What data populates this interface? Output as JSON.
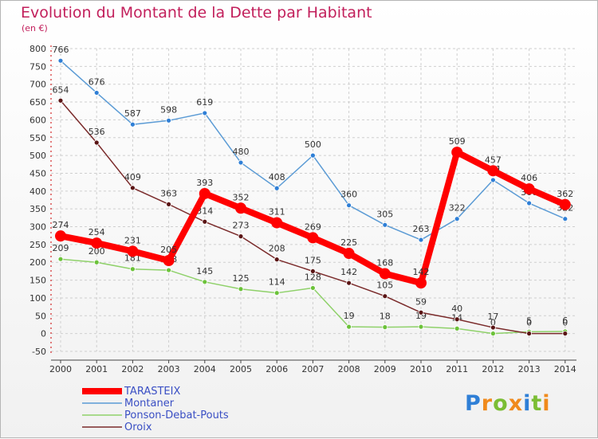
{
  "title": "Evolution du Montant de la Dette par Habitant",
  "unit": "(en €)",
  "logo_text": "Proxiti",
  "chart_data": {
    "type": "line",
    "title": "Evolution du Montant de la Dette par Habitant",
    "ylabel": "(en €)",
    "ylim": [
      -50,
      800
    ],
    "yticks": [
      -50,
      0,
      50,
      100,
      150,
      200,
      250,
      300,
      350,
      400,
      450,
      500,
      550,
      600,
      650,
      700,
      750,
      800
    ],
    "categories": [
      "2000",
      "2001",
      "2002",
      "2003",
      "2004",
      "2005",
      "2006",
      "2007",
      "2008",
      "2009",
      "2010",
      "2011",
      "2012",
      "2013",
      "2014"
    ],
    "grid": true,
    "legend_position": "bottom-left",
    "series": [
      {
        "name": "Montaner",
        "color": "#5b9bd5",
        "marker_color": "#2f7fd6",
        "values": [
          766,
          676,
          587,
          598,
          619,
          480,
          408,
          500,
          360,
          305,
          263,
          322,
          431,
          366,
          322
        ]
      },
      {
        "name": "Ponson-Debat-Pouts",
        "color": "#8fd16a",
        "marker_color": "#6cc23a",
        "values": [
          209,
          200,
          181,
          178,
          145,
          125,
          114,
          128,
          19,
          18,
          19,
          14,
          0,
          5,
          6
        ]
      },
      {
        "name": "Oroix",
        "color": "#7a2a2a",
        "marker_color": "#5a1515",
        "values": [
          654,
          536,
          409,
          363,
          314,
          273,
          208,
          175,
          142,
          105,
          59,
          40,
          17,
          0,
          0
        ]
      },
      {
        "name": "TARASTEIX",
        "color": "#ff0000",
        "marker_color": "#ff0000",
        "values": [
          274,
          254,
          231,
          205,
          393,
          352,
          311,
          269,
          225,
          168,
          142,
          509,
          457,
          406,
          362
        ]
      }
    ],
    "data_labels": [
      {
        "series": "Montaner",
        "labels": [
          "766",
          "676",
          "587",
          "598",
          "619",
          "480",
          "408",
          "500",
          "360",
          "305",
          "263",
          "322",
          "431",
          "366",
          "322"
        ]
      },
      {
        "series": "Ponson-Debat-Pouts",
        "labels": [
          "209",
          "200",
          "181",
          "178",
          "145",
          "125",
          "114",
          "128",
          "19",
          "18",
          "19",
          "14",
          "0",
          "5",
          "6"
        ]
      },
      {
        "series": "Oroix",
        "labels": [
          "654",
          "536",
          "409",
          "363",
          "314",
          "273",
          "208",
          "175",
          "142",
          "105",
          "59",
          "40",
          "17",
          "0",
          "0"
        ]
      },
      {
        "series": "TARASTEIX",
        "labels": [
          "274",
          "254",
          "231",
          "205",
          "393",
          "352",
          "311",
          "269",
          "225",
          "168",
          "142",
          "509",
          "457",
          "406",
          "362"
        ]
      }
    ],
    "legend": [
      "TARASTEIX",
      "Montaner",
      "Ponson-Debat-Pouts",
      "Oroix"
    ]
  }
}
